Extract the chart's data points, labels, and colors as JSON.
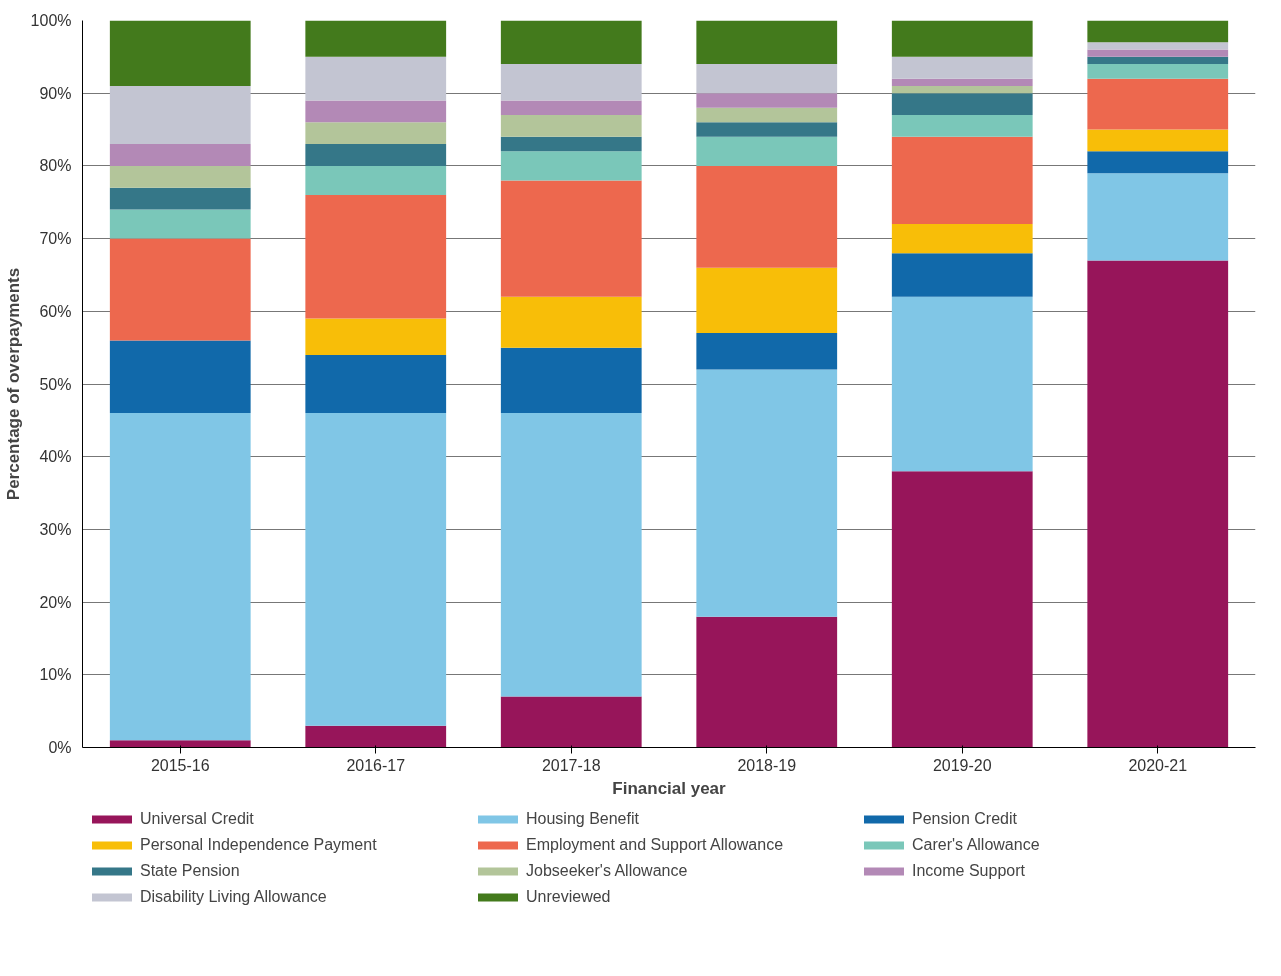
{
  "chart_data": {
    "type": "bar",
    "stacked": true,
    "xlabel": "Financial year",
    "ylabel": "Percentage of overpayments",
    "categories": [
      "2015-16",
      "2016-17",
      "2017-18",
      "2018-19",
      "2019-20",
      "2020-21"
    ],
    "ylim": [
      0,
      100
    ],
    "yticks": [
      {
        "value": 0,
        "label": "0%"
      },
      {
        "value": 10,
        "label": "10%"
      },
      {
        "value": 20,
        "label": "20%"
      },
      {
        "value": 30,
        "label": "30%"
      },
      {
        "value": 40,
        "label": "40%"
      },
      {
        "value": 50,
        "label": "50%"
      },
      {
        "value": 60,
        "label": "60%"
      },
      {
        "value": 70,
        "label": "70%"
      },
      {
        "value": 80,
        "label": "80%"
      },
      {
        "value": 90,
        "label": "90%"
      },
      {
        "value": 100,
        "label": "100%"
      }
    ],
    "grid": "y",
    "legend": "bottom",
    "series": [
      {
        "name": "Universal Credit",
        "color": "#97155a",
        "values": [
          1,
          3,
          7,
          18,
          38,
          67
        ]
      },
      {
        "name": "Housing Benefit",
        "color": "#80c6e6",
        "values": [
          45,
          43,
          39,
          34,
          24,
          12
        ]
      },
      {
        "name": "Pension Credit",
        "color": "#1169aa",
        "values": [
          10,
          8,
          9,
          5,
          6,
          3
        ]
      },
      {
        "name": "Personal Independence Payment",
        "color": "#f8be08",
        "values": [
          0,
          5,
          7,
          9,
          4,
          3
        ]
      },
      {
        "name": "Employment and Support Allowance",
        "color": "#ed684e",
        "values": [
          14,
          17,
          16,
          14,
          12,
          7
        ]
      },
      {
        "name": "Carer's Allowance",
        "color": "#7ac7b9",
        "values": [
          4,
          4,
          4,
          4,
          3,
          2
        ]
      },
      {
        "name": "State Pension",
        "color": "#357788",
        "values": [
          3,
          3,
          2,
          2,
          3,
          1
        ]
      },
      {
        "name": "Jobseeker's Allowance",
        "color": "#b3c59a",
        "values": [
          3,
          3,
          3,
          2,
          1,
          0
        ]
      },
      {
        "name": "Income Support",
        "color": "#b389b6",
        "values": [
          3,
          3,
          2,
          2,
          1,
          1
        ]
      },
      {
        "name": "Disability Living Allowance",
        "color": "#c3c5d2",
        "values": [
          8,
          6,
          5,
          4,
          3,
          1
        ]
      },
      {
        "name": "Unreviewed",
        "color": "#437a1c",
        "values": [
          9,
          5,
          6,
          6,
          5,
          3
        ]
      }
    ]
  }
}
